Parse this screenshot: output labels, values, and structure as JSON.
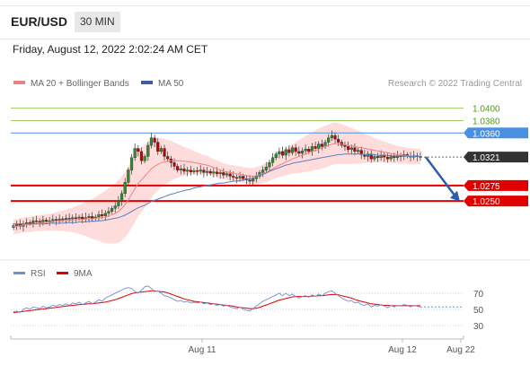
{
  "header": {
    "symbol": "EUR/USD",
    "timeframe": "30 MIN",
    "datetime": "Friday, August 12, 2022 2:02:24 AM CET"
  },
  "legend": {
    "ma20": "MA 20 + Bollinger Bands",
    "ma50": "MA 50",
    "credit": "Research © 2022 Trading Central",
    "rsi": "RSI",
    "rsi_ma": "9MA"
  },
  "colors": {
    "candle_up": "#2e8b2e",
    "candle_down": "#c00000",
    "ma20": "#f08080",
    "ma50": "#5b7fbf",
    "bollinger": "#ffd0d0",
    "resistance": "#4a90e2",
    "support": "#e00000",
    "target_green": "#9acd68",
    "arrow": "#2a5db0",
    "current": "#333333",
    "rsi": "#6f8fd0",
    "rsi_ma": "#e00000"
  },
  "chart_data": [
    {
      "type": "candlestick",
      "y_range": [
        1.0195,
        1.043
      ],
      "x_labels": [
        "Aug 11",
        "Aug 12",
        "Aug 22"
      ],
      "levels": [
        {
          "value": 1.04,
          "label": "1.0400",
          "kind": "target"
        },
        {
          "value": 1.038,
          "label": "1.0380",
          "kind": "target"
        },
        {
          "value": 1.036,
          "label": "1.0360",
          "kind": "resistance"
        },
        {
          "value": 1.0275,
          "label": "1.0275",
          "kind": "support"
        },
        {
          "value": 1.025,
          "label": "1.0250",
          "kind": "support"
        }
      ],
      "current_price": {
        "value": 1.0321,
        "label": "1.0321"
      },
      "forecast_arrow": {
        "from": 1.0321,
        "to": 1.0252,
        "direction": "down"
      },
      "close": [
        1.021,
        1.0212,
        1.0209,
        1.0213,
        1.0215,
        1.0214,
        1.0218,
        1.0217,
        1.0216,
        1.0219,
        1.0217,
        1.0218,
        1.022,
        1.0219,
        1.0221,
        1.022,
        1.0222,
        1.0221,
        1.0223,
        1.0222,
        1.0224,
        1.0221,
        1.0223,
        1.0225,
        1.0222,
        1.0224,
        1.0228,
        1.0226,
        1.023,
        1.0233,
        1.0238,
        1.0242,
        1.025,
        1.0262,
        1.028,
        1.03,
        1.032,
        1.0335,
        1.033,
        1.0315,
        1.0322,
        1.034,
        1.0352,
        1.0345,
        1.033,
        1.0335,
        1.0322,
        1.0318,
        1.0312,
        1.0306,
        1.03,
        1.0302,
        1.0298,
        1.03,
        1.0297,
        1.0299,
        1.0298,
        1.03,
        1.0296,
        1.0298,
        1.0295,
        1.0297,
        1.0294,
        1.0296,
        1.0292,
        1.0294,
        1.029,
        1.0288,
        1.0287,
        1.029,
        1.0286,
        1.0284,
        1.0282,
        1.0286,
        1.029,
        1.0296,
        1.03,
        1.0305,
        1.0312,
        1.032,
        1.0326,
        1.033,
        1.0324,
        1.0333,
        1.0328,
        1.0336,
        1.033,
        1.0327,
        1.0331,
        1.0334,
        1.033,
        1.0338,
        1.0335,
        1.0342,
        1.0338,
        1.0345,
        1.0352,
        1.0356,
        1.035,
        1.0345,
        1.034,
        1.0338,
        1.0333,
        1.0336,
        1.033,
        1.0332,
        1.0325,
        1.0322,
        1.0326,
        1.0318,
        1.0322,
        1.032,
        1.0324,
        1.0321,
        1.0318,
        1.0322,
        1.032,
        1.0323,
        1.0322,
        1.0325,
        1.0323,
        1.0321,
        1.0323,
        1.0322,
        1.0321
      ],
      "ma20": [
        1.0208,
        1.0209,
        1.021,
        1.0211,
        1.0212,
        1.0212,
        1.0213,
        1.0214,
        1.0214,
        1.0215,
        1.0215,
        1.0216,
        1.0216,
        1.0217,
        1.0217,
        1.0218,
        1.0218,
        1.0219,
        1.0219,
        1.022,
        1.022,
        1.022,
        1.0221,
        1.0221,
        1.0221,
        1.0222,
        1.0223,
        1.0223,
        1.0224,
        1.0226,
        1.0228,
        1.023,
        1.0233,
        1.0238,
        1.0244,
        1.0252,
        1.0261,
        1.027,
        1.0278,
        1.0284,
        1.029,
        1.0296,
        1.0302,
        1.0306,
        1.0309,
        1.0312,
        1.0313,
        1.0314,
        1.0315,
        1.0315,
        1.0315,
        1.0315,
        1.0314,
        1.0314,
        1.0313,
        1.0312,
        1.0311,
        1.031,
        1.0309,
        1.0308,
        1.0306,
        1.0304,
        1.0302,
        1.03,
        1.0298,
        1.0297,
        1.0296,
        1.0295,
        1.0294,
        1.0293,
        1.0292,
        1.0291,
        1.029,
        1.029,
        1.0291,
        1.0292,
        1.0294,
        1.0296,
        1.0299,
        1.0302,
        1.0305,
        1.0308,
        1.031,
        1.0313,
        1.0315,
        1.0318,
        1.032,
        1.0322,
        1.0324,
        1.0326,
        1.0328,
        1.033,
        1.0332,
        1.0334,
        1.0336,
        1.0338,
        1.034,
        1.0342,
        1.0343,
        1.0343,
        1.0342,
        1.0341,
        1.034,
        1.0339,
        1.0338,
        1.0337,
        1.0336,
        1.0335,
        1.0334,
        1.0333,
        1.0332,
        1.0331,
        1.033,
        1.0329,
        1.0328,
        1.0327,
        1.0326,
        1.0325,
        1.0324,
        1.0324,
        1.0323,
        1.0323,
        1.0322,
        1.0322,
        1.0322
      ],
      "ma50": [
        1.0213,
        1.0213,
        1.0213,
        1.0213,
        1.0213,
        1.0213,
        1.0213,
        1.0213,
        1.0213,
        1.0213,
        1.0213,
        1.0214,
        1.0214,
        1.0214,
        1.0214,
        1.0214,
        1.0215,
        1.0215,
        1.0215,
        1.0215,
        1.0216,
        1.0216,
        1.0216,
        1.0217,
        1.0217,
        1.0217,
        1.0218,
        1.0218,
        1.0219,
        1.022,
        1.0221,
        1.0222,
        1.0223,
        1.0225,
        1.0227,
        1.023,
        1.0233,
        1.0236,
        1.0239,
        1.0241,
        1.0243,
        1.0246,
        1.0249,
        1.0251,
        1.0253,
        1.0255,
        1.0257,
        1.0259,
        1.0261,
        1.0262,
        1.0264,
        1.0265,
        1.0267,
        1.0268,
        1.0269,
        1.0271,
        1.0272,
        1.0273,
        1.0274,
        1.0275,
        1.0276,
        1.0277,
        1.0278,
        1.0279,
        1.0279,
        1.028,
        1.0281,
        1.0282,
        1.0282,
        1.0283,
        1.0284,
        1.0285,
        1.0286,
        1.0287,
        1.0289,
        1.0291,
        1.0293,
        1.0295,
        1.0298,
        1.03,
        1.0302,
        1.0304,
        1.0306,
        1.0308,
        1.0309,
        1.0311,
        1.0312,
        1.0313,
        1.0314,
        1.0315,
        1.0316,
        1.0317,
        1.0318,
        1.0319,
        1.032,
        1.0321,
        1.0322,
        1.0323,
        1.0324,
        1.0325,
        1.0325,
        1.0326,
        1.0326,
        1.0326,
        1.0326,
        1.0326,
        1.0326,
        1.0325,
        1.0325,
        1.0325,
        1.0325,
        1.0324,
        1.0324,
        1.0324,
        1.0324,
        1.0323,
        1.0323,
        1.0323,
        1.0323,
        1.0323,
        1.0322,
        1.0322,
        1.0322,
        1.0322,
        1.0322
      ]
    },
    {
      "type": "line",
      "name": "RSI panel",
      "y_range": [
        20,
        80
      ],
      "y_ticks": [
        70,
        50,
        30
      ],
      "rsi": [
        47,
        48,
        46,
        50,
        52,
        50,
        53,
        52,
        51,
        54,
        52,
        53,
        55,
        54,
        56,
        55,
        57,
        55,
        58,
        57,
        59,
        56,
        58,
        60,
        57,
        59,
        62,
        60,
        64,
        66,
        68,
        70,
        72,
        74,
        76,
        77,
        76,
        72,
        70,
        74,
        78,
        79,
        76,
        72,
        73,
        70,
        67,
        66,
        64,
        62,
        60,
        61,
        59,
        60,
        58,
        59,
        58,
        59,
        57,
        58,
        56,
        57,
        55,
        56,
        54,
        55,
        53,
        52,
        51,
        53,
        50,
        49,
        48,
        51,
        54,
        57,
        60,
        62,
        64,
        66,
        68,
        70,
        67,
        70,
        67,
        69,
        66,
        64,
        66,
        67,
        65,
        68,
        66,
        69,
        67,
        70,
        72,
        73,
        70,
        67,
        64,
        62,
        60,
        61,
        58,
        59,
        56,
        55,
        57,
        53,
        55,
        54,
        56,
        54,
        52,
        55,
        53,
        55,
        54,
        56,
        55,
        53,
        55,
        54,
        53
      ],
      "ma9": [
        46,
        46.5,
        47,
        47.5,
        48,
        48.5,
        49,
        49.5,
        50,
        50.5,
        51,
        51.5,
        52,
        52.5,
        53,
        53.5,
        54,
        54.5,
        55,
        55.5,
        56,
        56,
        56.5,
        57,
        57,
        57.5,
        58,
        58.5,
        59,
        60,
        61,
        62,
        63.5,
        65,
        66.5,
        68,
        69.5,
        70.5,
        71,
        71.5,
        72,
        72.5,
        73,
        73,
        72.5,
        72,
        71.5,
        70.5,
        69,
        67.5,
        66,
        64.5,
        63,
        62,
        61,
        60,
        59.5,
        59,
        58.5,
        58,
        57.5,
        57,
        56.5,
        56,
        55.5,
        55,
        54.5,
        54,
        53,
        52.5,
        52,
        51.5,
        51,
        51,
        51.5,
        52.5,
        54,
        55.5,
        57,
        58.5,
        60,
        61.5,
        62.5,
        63.5,
        64.5,
        65.5,
        66,
        66,
        66,
        66,
        66,
        66.5,
        66.5,
        67,
        67,
        67.5,
        68,
        68.5,
        68.5,
        68,
        67,
        66,
        65,
        64,
        62.5,
        61,
        60,
        59,
        58,
        57,
        56.5,
        56,
        55.5,
        55,
        55,
        54.5,
        54.5,
        54.5,
        54.5,
        54.5,
        54.5,
        54.5,
        54.5,
        54.5,
        54.5
      ]
    }
  ]
}
